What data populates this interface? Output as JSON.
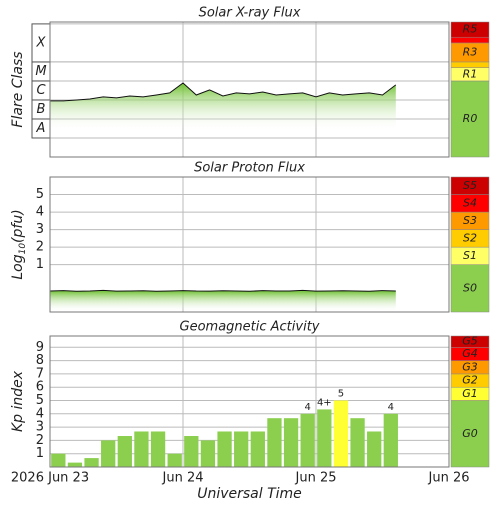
{
  "chart_data": [
    {
      "type": "area",
      "title": "Solar X-ray Flux",
      "ylabel": "Flare Class",
      "ylim": [
        -9,
        -1.9
      ],
      "xlim": [
        0,
        3
      ],
      "vgrid": [
        1,
        2
      ],
      "line_color": "#111111",
      "fill_color": "#6cbf2f",
      "classes": [
        {
          "label": "A",
          "min": -8,
          "max": -7
        },
        {
          "label": "B",
          "min": -7,
          "max": -6
        },
        {
          "label": "C",
          "min": -6,
          "max": -5
        },
        {
          "label": "M",
          "min": -5,
          "max": -4
        },
        {
          "label": "X",
          "min": -4,
          "max": -2
        }
      ],
      "x": [
        0,
        0.1,
        0.2,
        0.3,
        0.4,
        0.5,
        0.6,
        0.7,
        0.8,
        0.9,
        1.0,
        1.1,
        1.2,
        1.3,
        1.4,
        1.5,
        1.6,
        1.7,
        1.8,
        1.9,
        2.0,
        2.1,
        2.2,
        2.3,
        2.4,
        2.5,
        2.6
      ],
      "values": [
        -6.05,
        -6.05,
        -6.0,
        -5.95,
        -5.84,
        -5.89,
        -5.79,
        -5.84,
        -5.74,
        -5.63,
        -5.11,
        -5.74,
        -5.47,
        -5.79,
        -5.63,
        -5.68,
        -5.58,
        -5.74,
        -5.68,
        -5.63,
        -5.84,
        -5.63,
        -5.74,
        -5.68,
        -5.63,
        -5.74,
        -5.21
      ],
      "scale": [
        {
          "label": "R0",
          "color": "#8ccf4f",
          "min": -9,
          "max": -5
        },
        {
          "label": "R1",
          "color": "#ffff66",
          "min": -5,
          "max": -4.3
        },
        {
          "color": "#ffcc00",
          "min": -4.3,
          "max": -4
        },
        {
          "label": "R3",
          "color": "#ff9900",
          "min": -4,
          "max": -3
        },
        {
          "color": "#ff0000",
          "min": -3,
          "max": -2.7
        },
        {
          "label": "R5",
          "color": "#cc0000",
          "min": -2.7,
          "max": -1.9
        }
      ]
    },
    {
      "type": "area",
      "title": "Solar Proton Flux",
      "ylabel": {
        "base": "Log",
        "sub": "10",
        "unit": "(pfu)"
      },
      "ylim": [
        -1.7,
        6
      ],
      "yticks": [
        1,
        2,
        3,
        4,
        5
      ],
      "xlim": [
        0,
        3
      ],
      "vgrid": [
        1,
        2
      ],
      "line_color": "#111111",
      "fill_color": "#6cbf2f",
      "x": [
        0,
        0.1,
        0.2,
        0.3,
        0.4,
        0.5,
        0.6,
        0.7,
        0.8,
        0.9,
        1.0,
        1.1,
        1.2,
        1.3,
        1.4,
        1.5,
        1.6,
        1.7,
        1.8,
        1.9,
        2.0,
        2.1,
        2.2,
        2.3,
        2.4,
        2.5,
        2.6
      ],
      "values": [
        -0.5,
        -0.48,
        -0.52,
        -0.5,
        -0.47,
        -0.51,
        -0.5,
        -0.49,
        -0.52,
        -0.5,
        -0.48,
        -0.5,
        -0.51,
        -0.49,
        -0.5,
        -0.52,
        -0.48,
        -0.5,
        -0.5,
        -0.47,
        -0.51,
        -0.5,
        -0.49,
        -0.5,
        -0.52,
        -0.48,
        -0.5
      ],
      "scale": [
        {
          "label": "S0",
          "color": "#8ccf4f",
          "min": -1.7,
          "max": 1
        },
        {
          "label": "S1",
          "color": "#ffff66",
          "min": 1,
          "max": 2
        },
        {
          "label": "S2",
          "color": "#ffcc00",
          "min": 2,
          "max": 3
        },
        {
          "label": "S3",
          "color": "#ff9900",
          "min": 3,
          "max": 4
        },
        {
          "label": "S4",
          "color": "#ff0000",
          "min": 4,
          "max": 5
        },
        {
          "label": "S5",
          "color": "#cc0000",
          "min": 5,
          "max": 6
        }
      ]
    },
    {
      "type": "bar",
      "title": "Geomagnetic Activity",
      "ylabel": "Kp index",
      "xlabel": "Universal Time",
      "ylim": [
        0,
        9.85
      ],
      "yticks": [
        1,
        2,
        3,
        4,
        5,
        6,
        7,
        8,
        9
      ],
      "xlim": [
        0,
        3
      ],
      "xticks": [
        {
          "value": 0,
          "label": "2026 Jun 23"
        },
        {
          "value": 1,
          "label": "Jun 24"
        },
        {
          "value": 2,
          "label": "Jun 25"
        },
        {
          "value": 3,
          "label": "Jun 26"
        }
      ],
      "x": [
        0.0625,
        0.1875,
        0.3125,
        0.4375,
        0.5625,
        0.6875,
        0.8125,
        0.9375,
        1.0625,
        1.1875,
        1.3125,
        1.4375,
        1.5625,
        1.6875,
        1.8125,
        1.9375,
        2.0625,
        2.1875,
        2.3125,
        2.4375,
        2.5625
      ],
      "values": [
        1,
        0.33,
        0.67,
        2,
        2.33,
        2.67,
        2.67,
        1,
        2.33,
        2,
        2.67,
        2.67,
        2.67,
        3.67,
        3.67,
        4,
        4.33,
        5,
        3.67,
        2.67,
        4
      ],
      "value_labels": [
        null,
        null,
        null,
        null,
        null,
        null,
        null,
        null,
        null,
        null,
        null,
        null,
        null,
        null,
        null,
        "4",
        "4+",
        "5",
        null,
        null,
        "4"
      ],
      "scale": [
        {
          "label": "G0",
          "color": "#8ccf4f",
          "min": 0,
          "max": 5
        },
        {
          "label": "G1",
          "color": "#ffff33",
          "min": 5,
          "max": 6
        },
        {
          "label": "G2",
          "color": "#ffcc00",
          "min": 6,
          "max": 7
        },
        {
          "label": "G3",
          "color": "#ff9900",
          "min": 7,
          "max": 8
        },
        {
          "label": "G4",
          "color": "#ff0000",
          "min": 8,
          "max": 9
        },
        {
          "label": "G5",
          "color": "#cc0000",
          "min": 9,
          "max": 9.85
        }
      ]
    }
  ]
}
